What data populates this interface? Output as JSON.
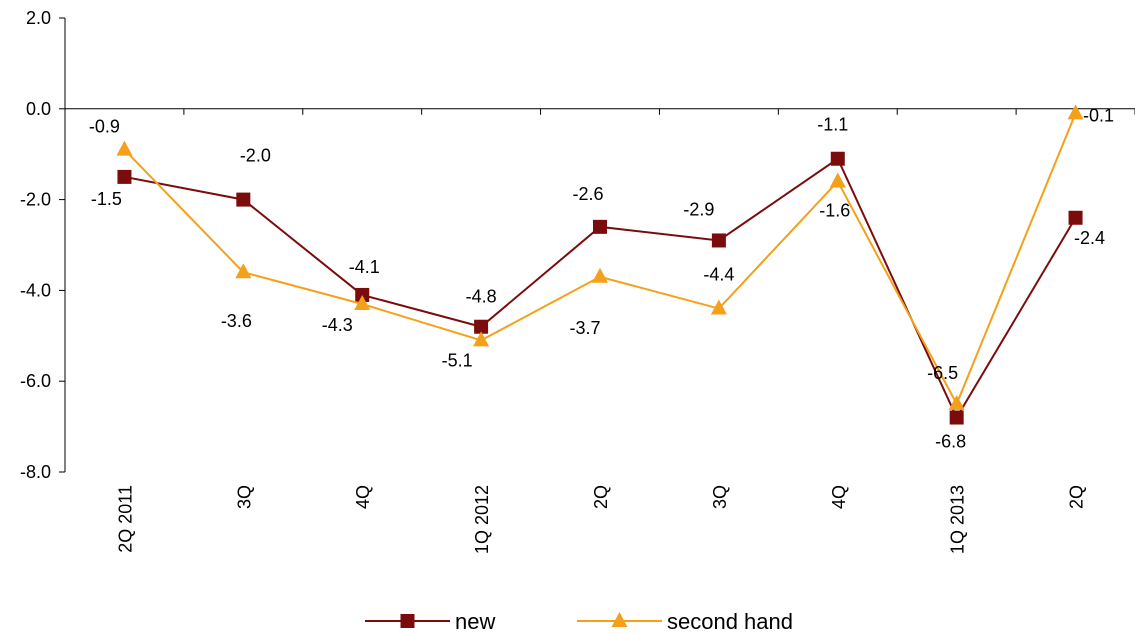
{
  "chart_data": {
    "type": "line",
    "title": "",
    "xlabel": "",
    "ylabel": "",
    "ylim": [
      -8.0,
      2.0
    ],
    "yticks": [
      "2.0",
      "0.0",
      "-2.0",
      "-4.0",
      "-6.0",
      "-8.0"
    ],
    "categories": [
      "2Q 2011",
      "3Q",
      "4Q",
      "1Q 2012",
      "2Q",
      "3Q",
      "4Q",
      "1Q 2013",
      "2Q"
    ],
    "series": [
      {
        "name": "new",
        "color": "#7b0c0c",
        "marker": "square",
        "values": [
          -1.5,
          -2.0,
          -4.1,
          -4.8,
          -2.6,
          -2.9,
          -1.1,
          -6.8,
          -2.4
        ],
        "labels": [
          "-1.5",
          "-2.0",
          "-4.1",
          "-4.8",
          "-2.6",
          "-2.9",
          "-1.1",
          "-6.8",
          "-2.4"
        ]
      },
      {
        "name": "second hand",
        "color": "#f5a01a",
        "marker": "triangle",
        "values": [
          -0.9,
          -3.6,
          -4.3,
          -5.1,
          -3.7,
          -4.4,
          -1.6,
          -6.5,
          -0.1
        ],
        "labels": [
          "-0.9",
          "-3.6",
          "-4.3",
          "-5.1",
          "-3.7",
          "-4.4",
          "-1.6",
          "-6.5",
          "-0.1"
        ]
      }
    ],
    "grid": false,
    "legend_position": "bottom"
  }
}
